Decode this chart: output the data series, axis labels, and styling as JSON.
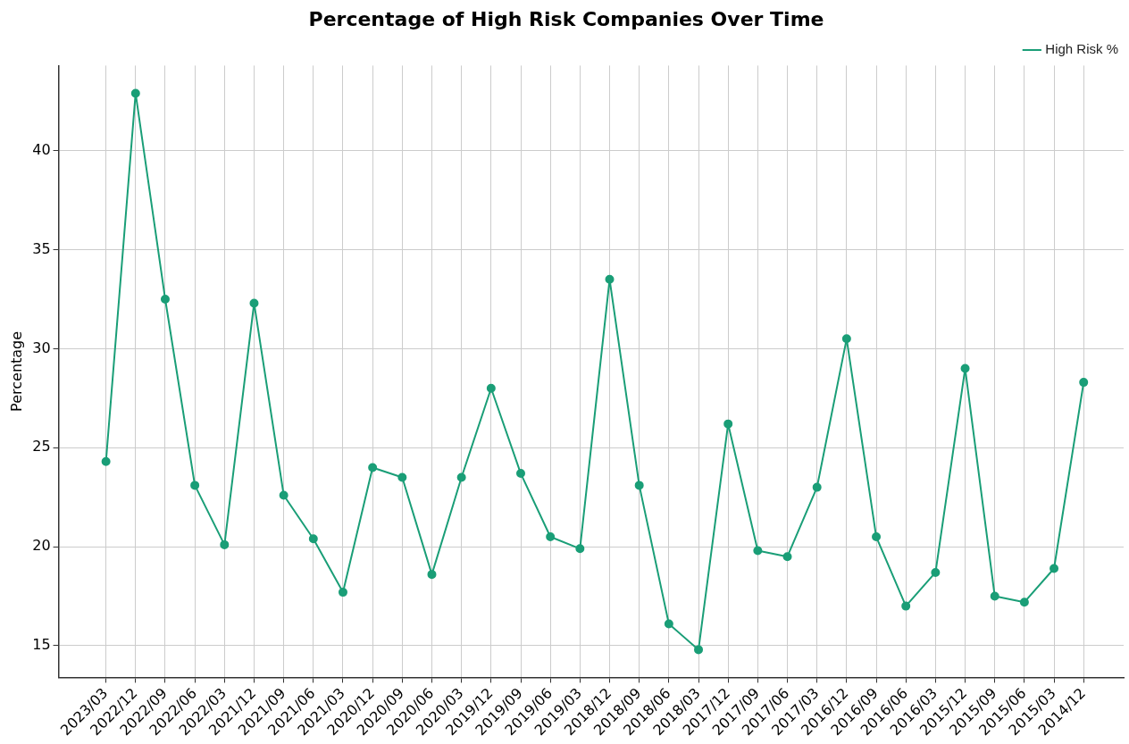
{
  "chart_data": {
    "type": "line",
    "title": "Percentage of High Risk Companies Over Time",
    "ylabel": "Percentage",
    "categories": [
      "2023/03",
      "2022/12",
      "2022/09",
      "2022/06",
      "2022/03",
      "2021/12",
      "2021/09",
      "2021/06",
      "2021/03",
      "2020/12",
      "2020/09",
      "2020/06",
      "2020/03",
      "2019/12",
      "2019/09",
      "2019/06",
      "2019/03",
      "2018/12",
      "2018/09",
      "2018/06",
      "2018/03",
      "2017/12",
      "2017/09",
      "2017/06",
      "2017/03",
      "2016/12",
      "2016/09",
      "2016/06",
      "2016/03",
      "2015/12",
      "2015/09",
      "2015/06",
      "2015/03",
      "2014/12"
    ],
    "series": [
      {
        "name": "High Risk %",
        "color": "#1a9e77",
        "values": [
          24.3,
          42.9,
          32.5,
          23.1,
          20.1,
          32.3,
          22.6,
          20.4,
          17.7,
          24.0,
          23.5,
          18.6,
          23.5,
          28.0,
          23.7,
          20.5,
          19.9,
          33.5,
          23.1,
          16.1,
          14.8,
          26.2,
          19.8,
          19.5,
          23.0,
          30.5,
          20.5,
          17.0,
          18.7,
          29.0,
          17.5,
          17.2,
          18.9,
          28.3
        ]
      }
    ],
    "ylim": [
      13.4,
      44.3
    ],
    "yticks": [
      15,
      20,
      25,
      30,
      35,
      40
    ],
    "grid": true,
    "legend": "top right",
    "marker": "circle",
    "line_style": "solid"
  }
}
